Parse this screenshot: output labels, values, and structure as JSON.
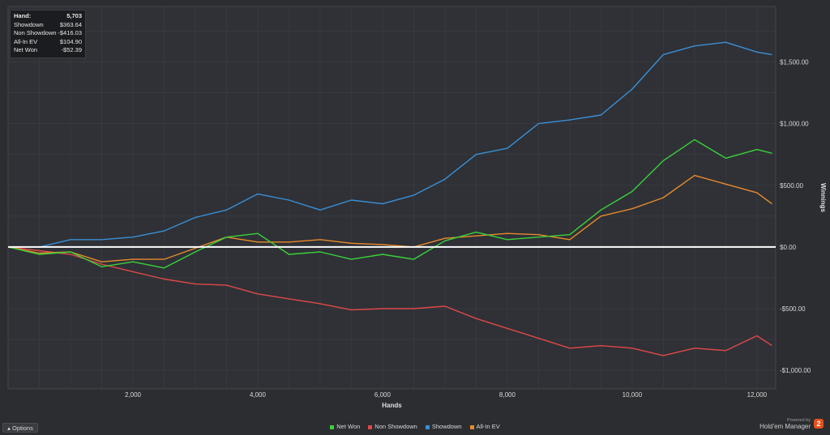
{
  "summary": {
    "rows": [
      {
        "label": "Hand:",
        "value": "5,703"
      },
      {
        "label": "Showdown",
        "value": "$363.64"
      },
      {
        "label": "Non Showdown",
        "value": "-$416.03"
      },
      {
        "label": "All-In EV",
        "value": "$104.90"
      },
      {
        "label": "Net Won",
        "value": "-$52.39"
      }
    ]
  },
  "options_label": "Options",
  "options_icon": "triangle-up-icon",
  "brand": {
    "powered_by": "Powered by",
    "name": "Hold'em Manager",
    "logo_text": "2",
    "logo_color": "#e8501a"
  },
  "chart_data": {
    "type": "line",
    "xlabel": "Hands",
    "ylabel": "Winnings",
    "xlim": [
      0,
      12300
    ],
    "ylim": [
      -1150,
      1950
    ],
    "x_ticks": [
      2000,
      4000,
      6000,
      8000,
      10000,
      12000
    ],
    "x_tick_labels": [
      "2,000",
      "4,000",
      "6,000",
      "8,000",
      "10,000",
      "12,000"
    ],
    "y_ticks": [
      1500,
      1000,
      500,
      0,
      -500,
      -1000
    ],
    "y_tick_labels": [
      "$1,500.00",
      "$1,000.00",
      "$500.00",
      "$0.00",
      "-$500.00",
      "-$1,000.00"
    ],
    "grid": true,
    "legend_position": "bottom",
    "zero_line_color": "#ffffff",
    "series": [
      {
        "name": "Net Won",
        "color": "#3bd13b",
        "x": [
          0,
          500,
          1000,
          1500,
          2000,
          2500,
          3000,
          3500,
          4000,
          4500,
          5000,
          5500,
          6000,
          6500,
          7000,
          7500,
          8000,
          8500,
          9000,
          9500,
          10000,
          10500,
          11000,
          11500,
          12000,
          12240
        ],
        "y": [
          0,
          -60,
          -40,
          -160,
          -120,
          -170,
          -40,
          80,
          110,
          -60,
          -40,
          -100,
          -60,
          -100,
          50,
          120,
          60,
          80,
          100,
          300,
          450,
          700,
          870,
          720,
          790,
          760
        ]
      },
      {
        "name": "Non Showdown",
        "color": "#e04848",
        "x": [
          0,
          500,
          1000,
          1500,
          2000,
          2500,
          3000,
          3500,
          4000,
          4500,
          5000,
          5500,
          6000,
          6500,
          7000,
          7500,
          8000,
          8500,
          9000,
          9500,
          10000,
          10500,
          11000,
          11500,
          12000,
          12240
        ],
        "y": [
          0,
          -30,
          -60,
          -140,
          -200,
          -260,
          -300,
          -310,
          -380,
          -420,
          -460,
          -510,
          -500,
          -500,
          -480,
          -580,
          -660,
          -740,
          -820,
          -800,
          -820,
          -880,
          -820,
          -840,
          -720,
          -800
        ]
      },
      {
        "name": "Showdown",
        "color": "#3a8fd6",
        "x": [
          0,
          500,
          1000,
          1500,
          2000,
          2500,
          3000,
          3500,
          4000,
          4500,
          5000,
          5500,
          6000,
          6500,
          7000,
          7500,
          8000,
          8500,
          9000,
          9500,
          10000,
          10500,
          11000,
          11500,
          12000,
          12240
        ],
        "y": [
          0,
          0,
          60,
          60,
          80,
          130,
          240,
          300,
          430,
          380,
          300,
          380,
          350,
          420,
          550,
          750,
          800,
          1000,
          1030,
          1070,
          1280,
          1560,
          1630,
          1660,
          1580,
          1560
        ]
      },
      {
        "name": "All-In EV",
        "color": "#e88a2c",
        "x": [
          0,
          500,
          1000,
          1500,
          2000,
          2500,
          3000,
          3500,
          4000,
          4500,
          5000,
          5500,
          6000,
          6500,
          7000,
          7500,
          8000,
          8500,
          9000,
          9500,
          10000,
          10500,
          11000,
          11500,
          12000,
          12240
        ],
        "y": [
          0,
          -50,
          -40,
          -120,
          -100,
          -100,
          -10,
          80,
          40,
          40,
          60,
          30,
          20,
          0,
          70,
          90,
          110,
          100,
          60,
          250,
          310,
          400,
          580,
          510,
          440,
          350
        ]
      }
    ]
  }
}
